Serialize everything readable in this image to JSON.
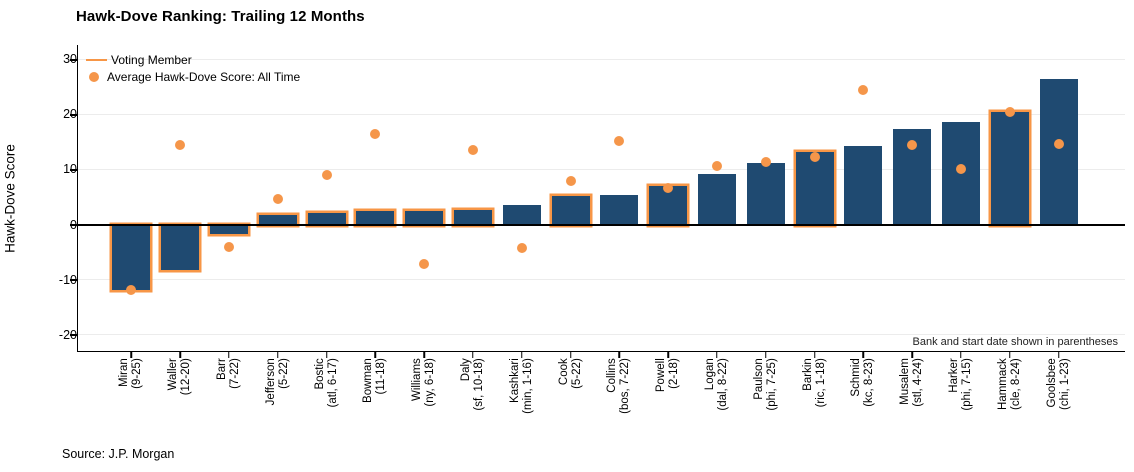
{
  "title": "Hawk-Dove Ranking: Trailing 12 Months",
  "source": "Source: J.P. Morgan",
  "annotation": "Bank and start date shown in parentheses",
  "legend": {
    "voting_label": "Voting Member",
    "average_label": "Average Hawk-Dove Score: All Time"
  },
  "colors": {
    "bar": "#1f4a71",
    "accent_orange": "#f79646",
    "dot_orange": "#f5964a",
    "gridline": "#ececec",
    "axis": "#000000"
  },
  "chart_data": {
    "type": "bar",
    "title": "Hawk-Dove Ranking: Trailing 12 Months",
    "xlabel": "",
    "ylabel": "Hawk-Dove Score",
    "ylim": [
      -23,
      32.6
    ],
    "yticks": [
      30,
      20,
      10,
      0,
      -10,
      -20
    ],
    "grid": "horizontal-light",
    "legend_position": "top-left-inside",
    "series": [
      {
        "name": "Hawk-Dove Score: Trailing 12 Months",
        "style": "bar",
        "note": "orange outline marks voting members"
      },
      {
        "name": "Average Hawk-Dove Score: All Time",
        "style": "scatter-dot"
      }
    ],
    "members": [
      {
        "label": "Miran",
        "paren": "(9-25)",
        "bar": -11.7,
        "dot": -11.7,
        "voting": true
      },
      {
        "label": "Waller",
        "paren": "(12-20)",
        "bar": -8.1,
        "dot": 14.4,
        "voting": true
      },
      {
        "label": "Barr",
        "paren": "(7-22)",
        "bar": -1.7,
        "dot": -4.0,
        "voting": true
      },
      {
        "label": "Jefferson",
        "paren": "(5-22)",
        "bar": 1.9,
        "dot": 4.7,
        "voting": true
      },
      {
        "label": "Bostic",
        "paren": "(atl, 6-17)",
        "bar": 2.2,
        "dot": 9.1,
        "voting": true
      },
      {
        "label": "Bowman",
        "paren": "(11-18)",
        "bar": 2.5,
        "dot": 16.4,
        "voting": true
      },
      {
        "label": "Williams",
        "paren": "(ny, 6-18)",
        "bar": 2.6,
        "dot": -7.0,
        "voting": true
      },
      {
        "label": "Daly",
        "paren": "(sf, 10-18)",
        "bar": 2.8,
        "dot": 13.5,
        "voting": true
      },
      {
        "label": "Kashkari",
        "paren": "(min, 1-16)",
        "bar": 3.6,
        "dot": -4.2,
        "voting": false
      },
      {
        "label": "Cook",
        "paren": "(5-22)",
        "bar": 5.2,
        "dot": 8.0,
        "voting": true
      },
      {
        "label": "Collins",
        "paren": "(bos, 7-22)",
        "bar": 5.5,
        "dot": 15.2,
        "voting": false
      },
      {
        "label": "Powell",
        "paren": "(2-18)",
        "bar": 7.0,
        "dot": 6.7,
        "voting": true
      },
      {
        "label": "Logan",
        "paren": "(dal, 8-22)",
        "bar": 9.2,
        "dot": 10.7,
        "voting": false
      },
      {
        "label": "Paulson",
        "paren": "(phi, 7-25)",
        "bar": 11.3,
        "dot": 11.4,
        "voting": false
      },
      {
        "label": "Barkin",
        "paren": "(ric, 1-18)",
        "bar": 13.2,
        "dot": 12.4,
        "voting": true
      },
      {
        "label": "Schmid",
        "paren": "(kc, 8-23)",
        "bar": 14.3,
        "dot": 24.4,
        "voting": false
      },
      {
        "label": "Musalem",
        "paren": "(stl, 4-24)",
        "bar": 17.4,
        "dot": 14.4,
        "voting": false
      },
      {
        "label": "Harker",
        "paren": "(phi, 7-15)",
        "bar": 18.6,
        "dot": 10.1,
        "voting": false
      },
      {
        "label": "Hammack",
        "paren": "(cle, 8-24)",
        "bar": 20.4,
        "dot": 20.4,
        "voting": true
      },
      {
        "label": "Goolsbee",
        "paren": "(chi, 1-23)",
        "bar": 26.5,
        "dot": 14.6,
        "voting": false
      }
    ]
  }
}
